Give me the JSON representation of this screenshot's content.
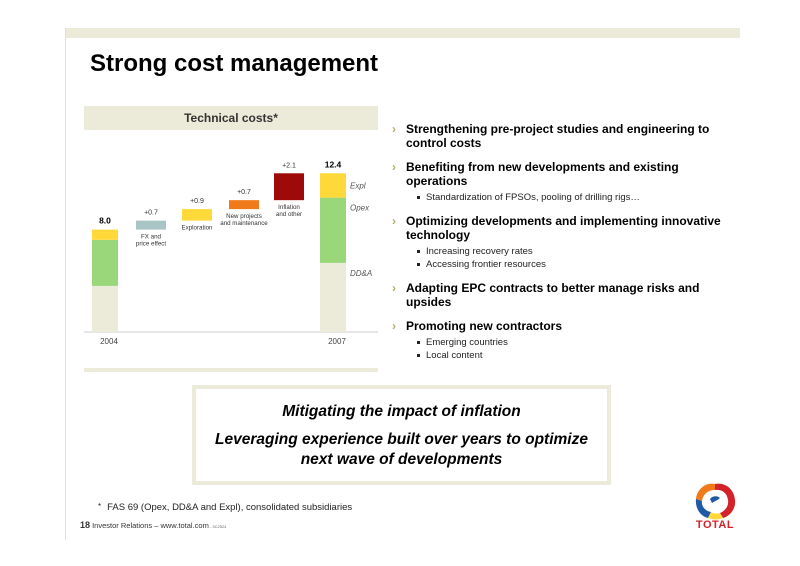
{
  "slide": {
    "title": "Strong cost management",
    "chart_title": "Technical costs*",
    "bullets": [
      {
        "text": "Strengthening pre-project studies and engineering to control costs",
        "subs": []
      },
      {
        "text": "Benefiting from new developments and existing operations",
        "subs": [
          "Standardization of FPSOs, pooling of drilling rigs…"
        ]
      },
      {
        "text": "Optimizing developments and implementing innovative technology",
        "subs": [
          "Increasing recovery rates",
          "Accessing frontier resources"
        ]
      },
      {
        "text": "Adapting EPC contracts to better manage risks and upsides",
        "subs": []
      },
      {
        "text": "Promoting new contractors",
        "subs": [
          "Emerging countries",
          "Local content"
        ]
      }
    ],
    "callout": {
      "line1": "Mitigating the impact of inflation",
      "line2": "Leveraging experience built over years to optimize next wave of developments"
    },
    "footnote_mark": "*",
    "footnote": "FAS 69 (Opex, DD&A and Expl), consolidated subsidiaries",
    "footer_page": "18",
    "footer_text": " Investor Relations – www.total.com",
    "footer_code": " - 3C2524",
    "logo_text": "TOTAL"
  },
  "colors": {
    "ddna": "#ecebd9",
    "opex": "#9ad67a",
    "expl": "#ffd93a",
    "fx": "#a8c4c4",
    "exploration": "#ffd93a",
    "new_projects": "#f07a1a",
    "inflation": "#9e0a0a",
    "accent": "#b5ad6a"
  },
  "chart_data": {
    "type": "bar",
    "title": "Technical costs*",
    "categories": [
      "2004",
      "FX and price effect",
      "Exploration",
      "New projects and maintenance",
      "Inflation and other",
      "2007"
    ],
    "category_labels": [
      [
        "2004"
      ],
      [
        "FX and",
        "price effect"
      ],
      [
        "Exploration"
      ],
      [
        "New projects",
        "and maintenance"
      ],
      [
        "Inflation",
        "and other"
      ],
      [
        "2007"
      ]
    ],
    "value_labels": [
      "8.0",
      "+0.7",
      "+0.9",
      "+0.7",
      "+2.1",
      "12.4"
    ],
    "totals": {
      "2004": {
        "total": 8.0,
        "segments": {
          "DD&A": 3.6,
          "Opex": 3.6,
          "Expl": 0.8
        }
      },
      "2007": {
        "total": 12.4,
        "segments": {
          "DD&A": 5.4,
          "Opex": 5.1,
          "Expl": 1.9
        }
      }
    },
    "increments": [
      {
        "category": "FX and price effect",
        "value": 0.7
      },
      {
        "category": "Exploration",
        "value": 0.9
      },
      {
        "category": "New projects and maintenance",
        "value": 0.7
      },
      {
        "category": "Inflation and other",
        "value": 2.1
      }
    ],
    "segment_labels": [
      "Expl",
      "Opex",
      "DD&A"
    ]
  }
}
